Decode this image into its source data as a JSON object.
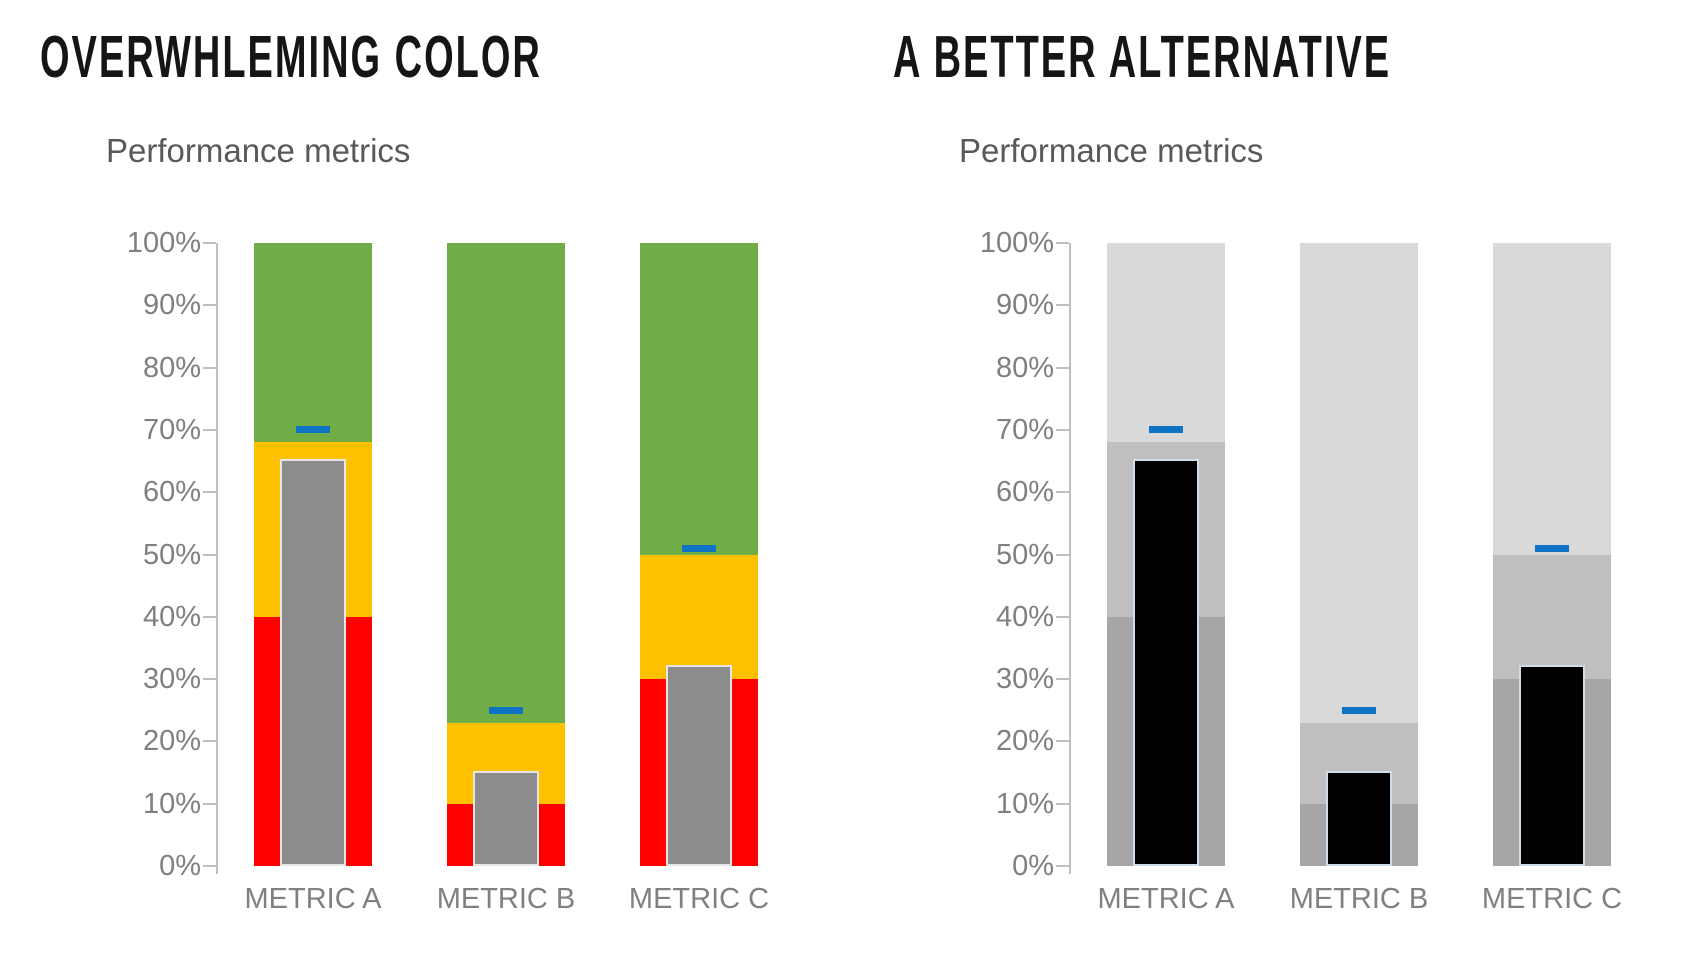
{
  "page": {
    "background": "#ffffff"
  },
  "chart_data": [
    {
      "type": "bar",
      "variant": "bullet-stacked-column",
      "panel_title": "OVERWHLEMING COLOR",
      "title": "Performance metrics",
      "categories": [
        "METRIC A",
        "METRIC B",
        "METRIC C"
      ],
      "ylim": [
        0,
        100
      ],
      "y_ticks": [
        "0%",
        "10%",
        "20%",
        "30%",
        "40%",
        "50%",
        "60%",
        "70%",
        "80%",
        "90%",
        "100%"
      ],
      "grid": false,
      "legend": false,
      "axis_color": "#bfbfbf",
      "tick_label_color": "#808080",
      "title_color": "#595959",
      "series": [
        {
          "name": "low-band",
          "role": "range-band",
          "color": "#ff0000",
          "values": [
            [
              0,
              40
            ],
            [
              0,
              10
            ],
            [
              0,
              30
            ]
          ]
        },
        {
          "name": "mid-band",
          "role": "range-band",
          "color": "#ffc000",
          "values": [
            [
              40,
              68
            ],
            [
              10,
              23
            ],
            [
              30,
              50
            ]
          ]
        },
        {
          "name": "high-band",
          "role": "range-band",
          "color": "#70ad47",
          "values": [
            [
              68,
              100
            ],
            [
              23,
              100
            ],
            [
              50,
              100
            ]
          ]
        },
        {
          "name": "actual",
          "role": "column",
          "color": "#8c8c8c",
          "border_color": "#e7e6e6",
          "values": [
            65,
            15,
            32
          ]
        },
        {
          "name": "target",
          "role": "tick-marker",
          "color": "#0e73c4",
          "values": [
            70,
            25,
            51
          ]
        }
      ]
    },
    {
      "type": "bar",
      "variant": "bullet-stacked-column",
      "panel_title": "A BETTER ALTERNATIVE",
      "title": "Performance metrics",
      "categories": [
        "METRIC A",
        "METRIC B",
        "METRIC C"
      ],
      "ylim": [
        0,
        100
      ],
      "y_ticks": [
        "0%",
        "10%",
        "20%",
        "30%",
        "40%",
        "50%",
        "60%",
        "70%",
        "80%",
        "90%",
        "100%"
      ],
      "grid": false,
      "legend": false,
      "axis_color": "#bfbfbf",
      "tick_label_color": "#808080",
      "title_color": "#595959",
      "series": [
        {
          "name": "low-band",
          "role": "range-band",
          "color": "#a6a6a6",
          "values": [
            [
              0,
              40
            ],
            [
              0,
              10
            ],
            [
              0,
              30
            ]
          ]
        },
        {
          "name": "mid-band",
          "role": "range-band",
          "color": "#bfbfbf",
          "values": [
            [
              40,
              68
            ],
            [
              10,
              23
            ],
            [
              30,
              50
            ]
          ]
        },
        {
          "name": "high-band",
          "role": "range-band",
          "color": "#d9d9d9",
          "values": [
            [
              68,
              100
            ],
            [
              23,
              100
            ],
            [
              50,
              100
            ]
          ]
        },
        {
          "name": "actual",
          "role": "column",
          "color": "#000000",
          "border_color": "#cfddeb",
          "values": [
            65,
            15,
            32
          ]
        },
        {
          "name": "target",
          "role": "tick-marker",
          "color": "#0e73c4",
          "values": [
            70,
            25,
            51
          ]
        }
      ]
    }
  ]
}
